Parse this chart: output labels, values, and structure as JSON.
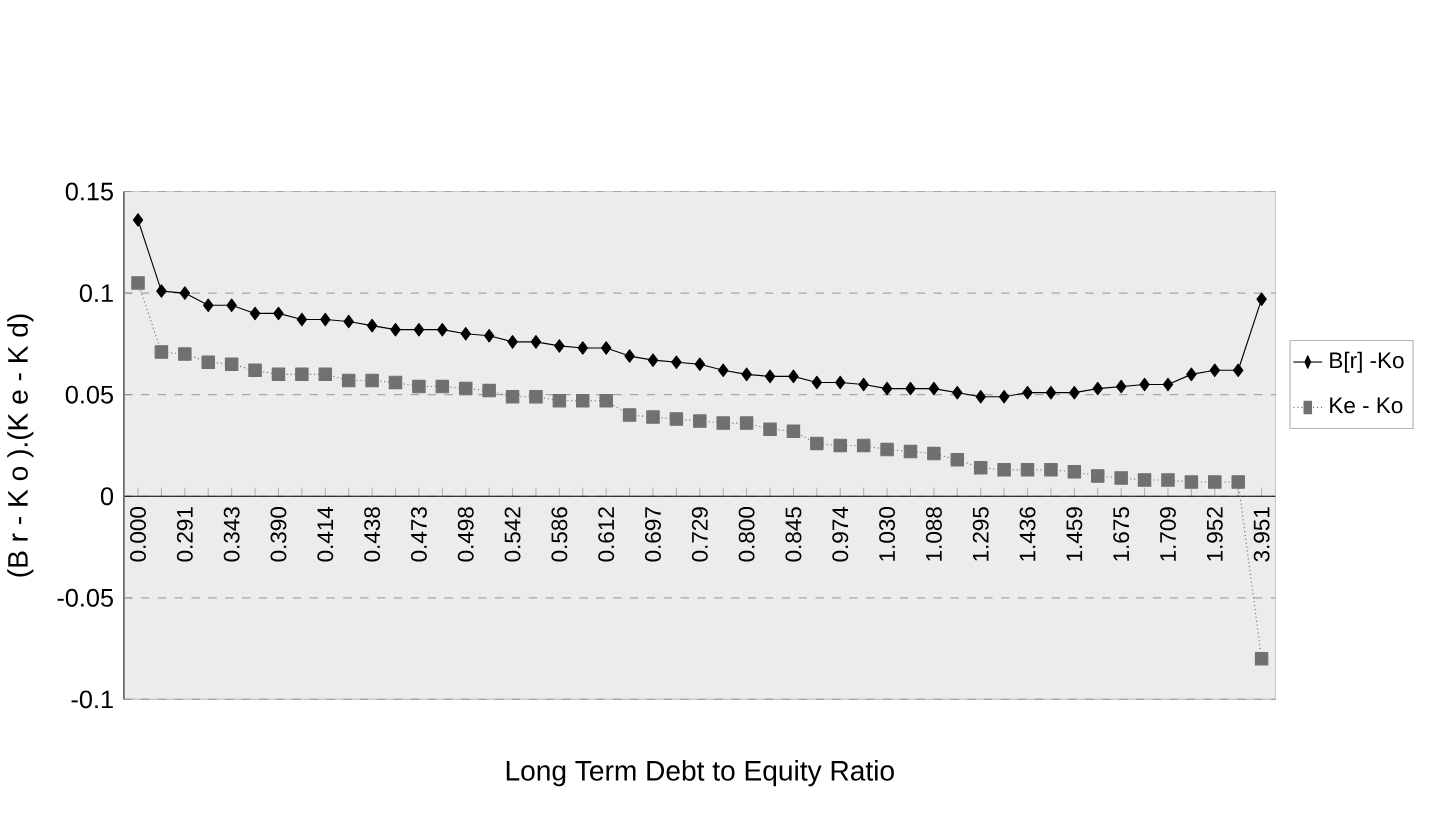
{
  "chart_data": {
    "type": "line",
    "xlabel": "Long Term Debt to Equity Ratio",
    "ylabel": "(B r - K o ).(K e - K d)",
    "categories": [
      "0.000",
      null,
      "0.291",
      null,
      "0.343",
      null,
      "0.390",
      null,
      "0.414",
      null,
      "0.438",
      null,
      "0.473",
      null,
      "0.498",
      null,
      "0.542",
      null,
      "0.586",
      null,
      "0.612",
      null,
      "0.697",
      null,
      "0.729",
      null,
      "0.800",
      null,
      "0.845",
      null,
      "0.974",
      null,
      "1.030",
      null,
      "1.088",
      null,
      "1.295",
      null,
      "1.436",
      null,
      "1.459",
      null,
      "1.675",
      null,
      "1.709",
      null,
      "1.952",
      null,
      "3.951"
    ],
    "series": [
      {
        "name": "B[r] -Ko",
        "color": "#000000",
        "marker": "diamond",
        "line_style": "solid",
        "values": [
          0.136,
          0.101,
          0.1,
          0.094,
          0.094,
          0.09,
          0.09,
          0.087,
          0.087,
          0.086,
          0.084,
          0.082,
          0.082,
          0.082,
          0.08,
          0.079,
          0.076,
          0.076,
          0.074,
          0.073,
          0.073,
          0.069,
          0.067,
          0.066,
          0.065,
          0.062,
          0.06,
          0.059,
          0.059,
          0.056,
          0.056,
          0.055,
          0.053,
          0.053,
          0.053,
          0.051,
          0.049,
          0.049,
          0.051,
          0.051,
          0.051,
          0.053,
          0.054,
          0.055,
          0.055,
          0.06,
          0.062,
          0.062,
          0.097
        ]
      },
      {
        "name": "Ke - Ko",
        "color": "#707070",
        "marker": "square",
        "line_style": "dotted",
        "values": [
          0.105,
          0.071,
          0.07,
          0.066,
          0.065,
          0.062,
          0.06,
          0.06,
          0.06,
          0.057,
          0.057,
          0.056,
          0.054,
          0.054,
          0.053,
          0.052,
          0.049,
          0.049,
          0.047,
          0.047,
          0.047,
          0.04,
          0.039,
          0.038,
          0.037,
          0.036,
          0.036,
          0.033,
          0.032,
          0.026,
          0.025,
          0.025,
          0.023,
          0.022,
          0.021,
          0.018,
          0.014,
          0.013,
          0.013,
          0.013,
          0.012,
          0.01,
          0.009,
          0.008,
          0.008,
          0.007,
          0.007,
          0.007,
          -0.08
        ]
      }
    ],
    "ylim": [
      -0.1,
      0.15
    ],
    "yticks": [
      -0.1,
      -0.05,
      0,
      0.05,
      0.1,
      0.15
    ],
    "grid": "y",
    "legend": "right"
  }
}
